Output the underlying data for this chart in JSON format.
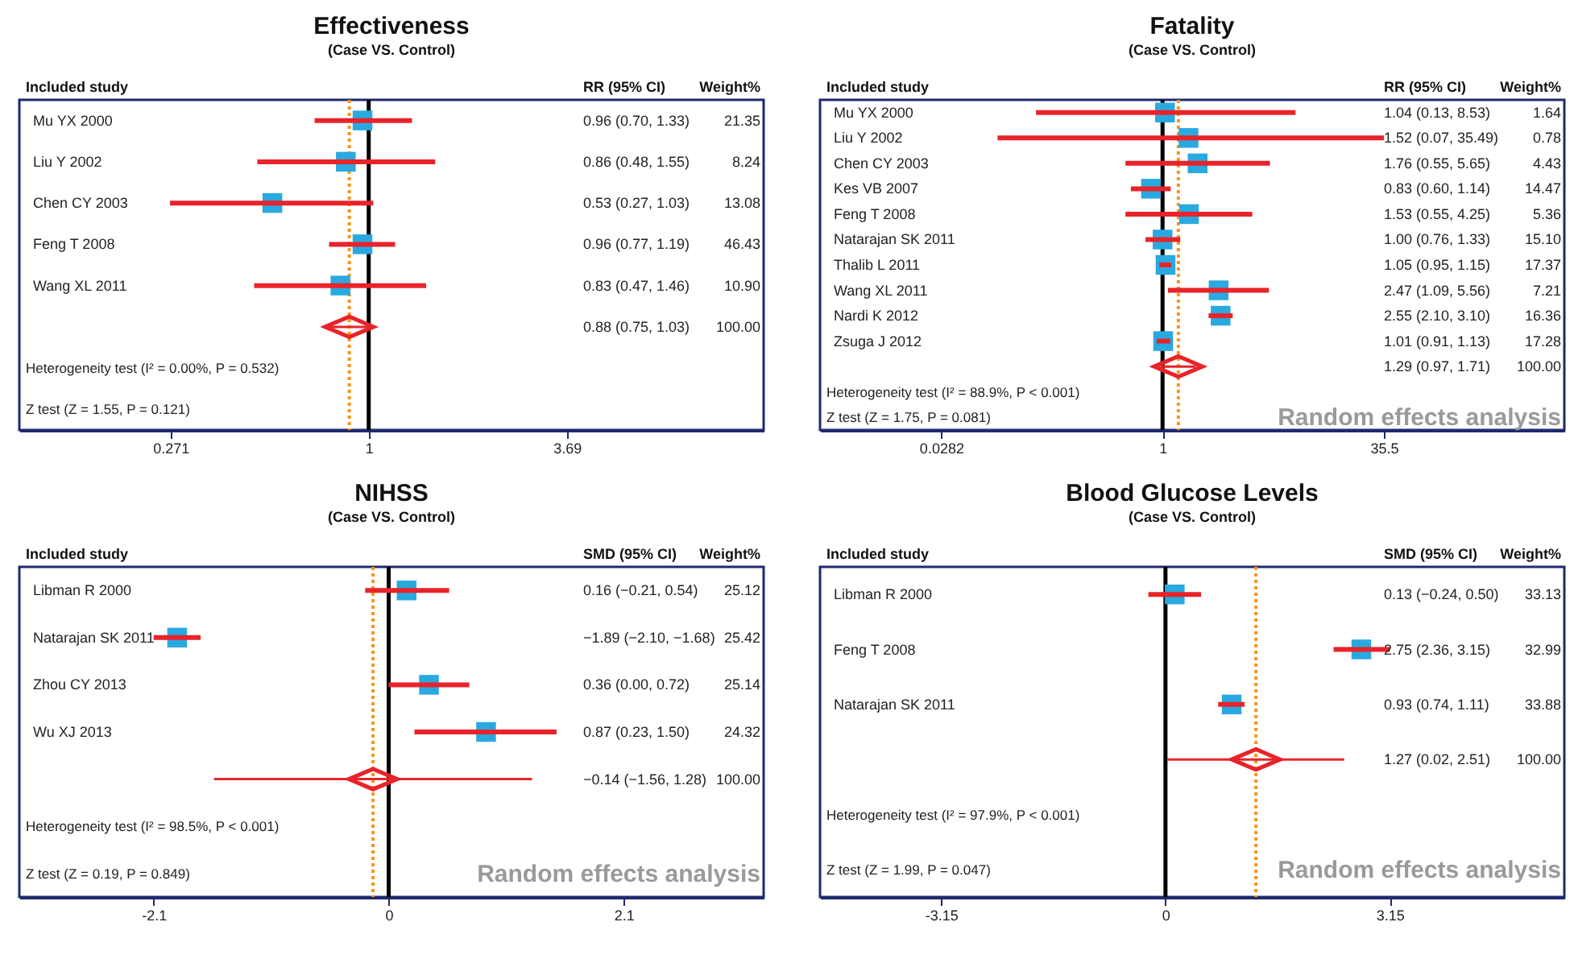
{
  "chart_data": [
    {
      "type": "scatter",
      "title": "Effectiveness",
      "subtitle": "(Case VS. Control)",
      "ylabel": "Included study",
      "orientation": "horizontal",
      "log": "x",
      "xlim": [
        0.1,
        13.5
      ],
      "xticks": [
        0.271,
        1,
        3.69
      ],
      "grid": false,
      "categories": [
        "Mu YX 2000",
        "Liu Y 2002",
        "Chen CY 2003",
        "Feng T 2008",
        "Wang XL 2011",
        null
      ],
      "series": [
        {
          "color": "#29a9e0",
          "marker": "square",
          "values": [
            0.96,
            0.86,
            0.53,
            0.96,
            0.83,
            null
          ],
          "errors": [
            [
              0.7,
              1.33
            ],
            [
              0.48,
              1.55
            ],
            [
              0.27,
              1.03
            ],
            [
              0.77,
              1.19
            ],
            [
              0.47,
              1.46
            ],
            null
          ]
        },
        {
          "color": "#e8232a",
          "marker": "diamond",
          "values": [
            null,
            null,
            null,
            null,
            null,
            0.88
          ],
          "errors": [
            null,
            null,
            null,
            null,
            null,
            [
              0.75,
              1.03
            ]
          ]
        }
      ],
      "ref_lines": [
        {
          "axis": "x",
          "value": 1,
          "color": "#000000"
        },
        {
          "axis": "x",
          "value": 0.88,
          "color": "#f7941d",
          "line_style": "dotted"
        }
      ],
      "annotations": [
        "RR (95% CI)",
        "Weight%",
        "Heterogeneity test (I² = 0.00%, P = 0.532)",
        "Z test (Z = 1.55, P = 0.121)",
        "0.96 (0.70, 1.33)",
        "0.86 (0.48, 1.55)",
        "0.53 (0.27, 1.03)",
        "0.96 (0.77, 1.19)",
        "0.83 (0.47, 1.46)",
        "0.88 (0.75, 1.03)",
        "21.35",
        "8.24",
        "13.08",
        "46.43",
        "10.90",
        "100.00"
      ]
    },
    {
      "type": "scatter",
      "title": "Fatality",
      "subtitle": "(Case VS. Control)",
      "ylabel": "Included study",
      "orientation": "horizontal",
      "log": "x",
      "xlim": [
        0.004,
        650
      ],
      "xticks": [
        0.0282,
        1,
        35.5
      ],
      "grid": false,
      "categories": [
        "Mu YX 2000",
        "Liu Y 2002",
        "Chen CY 2003",
        "Kes VB 2007",
        "Feng T 2008",
        "Natarajan SK 2011",
        "Thalib L 2011",
        "Wang XL 2011",
        "Nardi K 2012",
        "Zsuga J 2012",
        null
      ],
      "series": [
        {
          "color": "#29a9e0",
          "marker": "square",
          "values": [
            1.04,
            1.52,
            1.76,
            0.83,
            1.53,
            1.0,
            1.05,
            2.47,
            2.55,
            1.01,
            null
          ],
          "errors": [
            [
              0.13,
              8.53
            ],
            [
              0.07,
              35.49
            ],
            [
              0.55,
              5.65
            ],
            [
              0.6,
              1.14
            ],
            [
              0.55,
              4.25
            ],
            [
              0.76,
              1.33
            ],
            [
              0.95,
              1.15
            ],
            [
              1.09,
              5.56
            ],
            [
              2.1,
              3.1
            ],
            [
              0.91,
              1.13
            ],
            null
          ]
        },
        {
          "color": "#e8232a",
          "marker": "diamond",
          "values": [
            null,
            null,
            null,
            null,
            null,
            null,
            null,
            null,
            null,
            null,
            1.29
          ],
          "errors": [
            null,
            null,
            null,
            null,
            null,
            null,
            null,
            null,
            null,
            null,
            [
              0.97,
              1.71
            ]
          ]
        }
      ],
      "ref_lines": [
        {
          "axis": "x",
          "value": 1,
          "color": "#000000"
        },
        {
          "axis": "x",
          "value": 1.29,
          "color": "#f7941d",
          "line_style": "dotted"
        }
      ],
      "annotations": [
        "RR (95% CI)",
        "Weight%",
        "Heterogeneity test (I² = 88.9%, P < 0.001)",
        "Z test (Z = 1.75, P = 0.081)",
        "1.04 (0.13, 8.53)",
        "1.52 (0.07, 35.49)",
        "1.76 (0.55, 5.65)",
        "0.83 (0.60, 1.14)",
        "1.53 (0.55, 4.25)",
        "1.00 (0.76, 1.33)",
        "1.05 (0.95, 1.15)",
        "2.47 (1.09, 5.56)",
        "2.55 (2.10, 3.10)",
        "1.01 (0.91, 1.13)",
        "1.29 (0.97, 1.71)",
        "1.64",
        "0.78",
        "4.43",
        "14.47",
        "5.36",
        "15.10",
        "17.37",
        "7.21",
        "16.36",
        "17.28",
        "100.00",
        "Random effects analysis"
      ]
    },
    {
      "type": "scatter",
      "title": "NIHSS",
      "subtitle": "(Case VS. Control)",
      "ylabel": "Included study",
      "orientation": "horizontal",
      "xlim": [
        -3.3,
        3.35
      ],
      "xticks": [
        -2.1,
        0,
        2.1
      ],
      "grid": false,
      "categories": [
        "Libman R 2000",
        "Natarajan SK 2011",
        "Zhou CY 2013",
        "Wu XJ 2013",
        null
      ],
      "series": [
        {
          "color": "#29a9e0",
          "marker": "square",
          "values": [
            0.16,
            -1.89,
            0.36,
            0.87,
            null
          ],
          "errors": [
            [
              -0.21,
              0.54
            ],
            [
              -2.1,
              -1.68
            ],
            [
              0.0,
              0.72
            ],
            [
              0.23,
              1.5
            ],
            null
          ]
        },
        {
          "color": "#e8232a",
          "marker": "diamond",
          "values": [
            null,
            null,
            null,
            null,
            -0.14
          ],
          "errors": [
            null,
            null,
            null,
            null,
            [
              -1.56,
              1.28
            ]
          ]
        }
      ],
      "ref_lines": [
        {
          "axis": "x",
          "value": 0,
          "color": "#000000"
        },
        {
          "axis": "x",
          "value": -0.14,
          "color": "#f7941d",
          "line_style": "dotted"
        }
      ],
      "annotations": [
        "SMD (95% CI)",
        "Weight%",
        "Heterogeneity test (I² = 98.5%, P < 0.001)",
        "Z test (Z = 0.19, P = 0.849)",
        "0.16 (−0.21, 0.54)",
        "−1.89 (−2.10, −1.68)",
        "0.36 (0.00, 0.72)",
        "0.87 (0.23, 1.50)",
        "−0.14 (−1.56, 1.28)",
        "25.12",
        "25.42",
        "25.14",
        "24.32",
        "100.00",
        "Random effects analysis"
      ]
    },
    {
      "type": "scatter",
      "title": "Blood Glucose Levels",
      "subtitle": "(Case VS. Control)",
      "ylabel": "Included study",
      "orientation": "horizontal",
      "xlim": [
        -4.85,
        5.6
      ],
      "xticks": [
        -3.15,
        0,
        3.15
      ],
      "grid": false,
      "categories": [
        "Libman R 2000",
        "Feng T 2008",
        "Natarajan SK 2011",
        null
      ],
      "series": [
        {
          "color": "#29a9e0",
          "marker": "square",
          "values": [
            0.13,
            2.75,
            0.93,
            null
          ],
          "errors": [
            [
              -0.24,
              0.5
            ],
            [
              2.36,
              3.15
            ],
            [
              0.74,
              1.11
            ],
            null
          ]
        },
        {
          "color": "#e8232a",
          "marker": "diamond",
          "values": [
            null,
            null,
            null,
            1.27
          ],
          "errors": [
            null,
            null,
            null,
            [
              0.02,
              2.51
            ]
          ]
        }
      ],
      "ref_lines": [
        {
          "axis": "x",
          "value": 0,
          "color": "#000000"
        },
        {
          "axis": "x",
          "value": 1.27,
          "color": "#f7941d",
          "line_style": "dotted"
        }
      ],
      "annotations": [
        "SMD (95% CI)",
        "Weight%",
        "Heterogeneity test (I² = 97.9%, P < 0.001)",
        "Z test (Z = 1.99, P = 0.047)",
        "0.13 (−0.24, 0.50)",
        "2.75 (2.36, 3.15)",
        "0.93 (0.74, 1.11)",
        "1.27 (0.02, 2.51)",
        "33.13",
        "32.99",
        "33.88",
        "100.00",
        "Random effects analysis"
      ]
    }
  ]
}
